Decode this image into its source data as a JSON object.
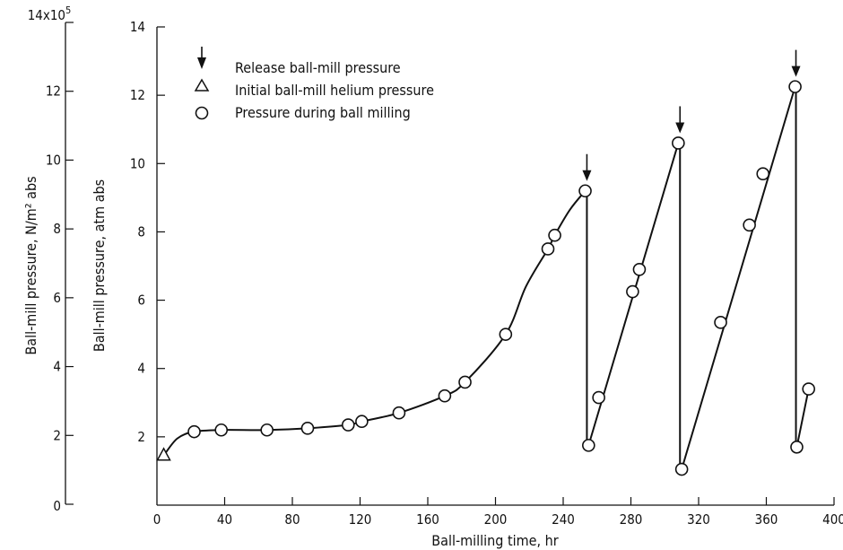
{
  "chart_data": {
    "type": "line",
    "xlabel": "Ball-milling time, hr",
    "ylabel_primary": "Ball-mill pressure, atm abs",
    "ylabel_secondary": "Ball-mill pressure, N/m² abs",
    "xlim": [
      0,
      400
    ],
    "ylim": [
      0,
      14
    ],
    "x_ticks": [
      0,
      40,
      80,
      120,
      160,
      200,
      240,
      280,
      320,
      360,
      400
    ],
    "y_ticks": [
      2,
      4,
      6,
      8,
      10,
      12,
      14
    ],
    "y2_ticks": [
      "0",
      "2",
      "4",
      "6",
      "8",
      "10",
      "12"
    ],
    "y2_top_label": "14x10",
    "y2_top_exponent": "5",
    "legend": [
      {
        "marker": "arrow",
        "label": "Release ball-mill pressure"
      },
      {
        "marker": "triangle",
        "label": "Initial ball-mill helium pressure"
      },
      {
        "marker": "circle",
        "label": "Pressure during ball milling"
      }
    ],
    "initial_point": {
      "x": 4,
      "y": 1.45
    },
    "pressure_points": [
      {
        "x": 22,
        "y": 2.15
      },
      {
        "x": 38,
        "y": 2.2
      },
      {
        "x": 65,
        "y": 2.2
      },
      {
        "x": 89,
        "y": 2.25
      },
      {
        "x": 113,
        "y": 2.35
      },
      {
        "x": 121,
        "y": 2.45
      },
      {
        "x": 143,
        "y": 2.7
      },
      {
        "x": 170,
        "y": 3.2
      },
      {
        "x": 182,
        "y": 3.6
      },
      {
        "x": 206,
        "y": 5.0
      },
      {
        "x": 231,
        "y": 7.5
      },
      {
        "x": 235,
        "y": 7.9
      },
      {
        "x": 253,
        "y": 9.2
      },
      {
        "x": 255,
        "y": 1.75
      },
      {
        "x": 261,
        "y": 3.15
      },
      {
        "x": 281,
        "y": 6.25
      },
      {
        "x": 285,
        "y": 6.9
      },
      {
        "x": 308,
        "y": 10.6
      },
      {
        "x": 310,
        "y": 1.05
      },
      {
        "x": 333,
        "y": 5.35
      },
      {
        "x": 350,
        "y": 8.2
      },
      {
        "x": 358,
        "y": 9.7
      },
      {
        "x": 377,
        "y": 12.25
      },
      {
        "x": 378,
        "y": 1.7
      },
      {
        "x": 385,
        "y": 3.4
      }
    ],
    "curve_segments": [
      [
        {
          "x": 4,
          "y": 1.45
        },
        {
          "x": 12,
          "y": 1.95
        },
        {
          "x": 22,
          "y": 2.15
        },
        {
          "x": 38,
          "y": 2.2
        },
        {
          "x": 65,
          "y": 2.2
        },
        {
          "x": 89,
          "y": 2.25
        },
        {
          "x": 113,
          "y": 2.35
        },
        {
          "x": 121,
          "y": 2.45
        },
        {
          "x": 143,
          "y": 2.7
        },
        {
          "x": 170,
          "y": 3.2
        },
        {
          "x": 182,
          "y": 3.6
        },
        {
          "x": 206,
          "y": 5.0
        },
        {
          "x": 218,
          "y": 6.4
        },
        {
          "x": 231,
          "y": 7.5
        },
        {
          "x": 235,
          "y": 7.9
        },
        {
          "x": 244,
          "y": 8.65
        },
        {
          "x": 253,
          "y": 9.2
        }
      ],
      [
        {
          "x": 255,
          "y": 1.75
        },
        {
          "x": 308,
          "y": 10.6
        }
      ],
      [
        {
          "x": 310,
          "y": 1.05
        },
        {
          "x": 377,
          "y": 12.25
        }
      ],
      [
        {
          "x": 378,
          "y": 1.7
        },
        {
          "x": 385,
          "y": 3.4
        }
      ]
    ],
    "pressure_releases": [
      {
        "x": 254,
        "from": 9.2,
        "to": 1.75
      },
      {
        "x": 309,
        "from": 10.6,
        "to": 1.05
      },
      {
        "x": 377.5,
        "from": 12.25,
        "to": 1.7
      }
    ]
  }
}
